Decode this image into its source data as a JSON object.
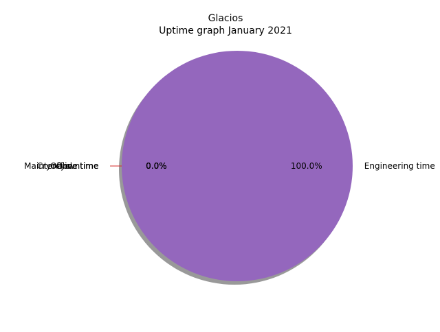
{
  "chart_data": {
    "type": "pie",
    "title_lines": [
      "Glacios",
      "Uptime graph January 2021"
    ],
    "slices": [
      {
        "label": "Maintenance time",
        "value": 0.0,
        "pct_label": "0.0%",
        "color": "#1f77b4",
        "exploded": true
      },
      {
        "label": "Cryocycle time",
        "value": 0.0,
        "pct_label": "0.0%",
        "color": "#ff7f0e",
        "exploded": true
      },
      {
        "label": "Offline time",
        "value": 0.0,
        "pct_label": "0.0%",
        "color": "#2ca02c",
        "exploded": true
      },
      {
        "label": "Downtime",
        "value": 0.0,
        "pct_label": "0.0%",
        "color": "#d62728",
        "exploded": true
      },
      {
        "label": "Engineering time",
        "value": 100.0,
        "pct_label": "100.0%",
        "color": "#9467bd",
        "exploded": false
      }
    ],
    "shadow": true,
    "legend": "none"
  }
}
